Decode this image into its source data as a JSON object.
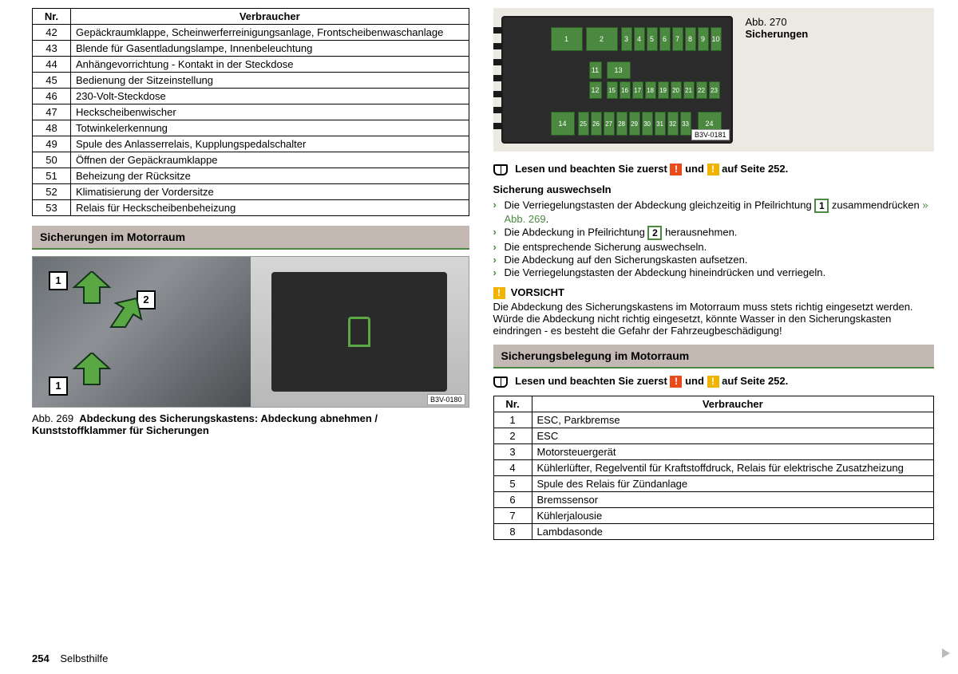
{
  "left_table": {
    "headers": [
      "Nr.",
      "Verbraucher"
    ],
    "rows": [
      [
        "42",
        "Gepäckraumklappe, Scheinwerferreinigungsanlage, Frontscheibenwaschanlage"
      ],
      [
        "43",
        "Blende für Gasentladungslampe, Innenbeleuchtung"
      ],
      [
        "44",
        "Anhängevorrichtung - Kontakt in der Steckdose"
      ],
      [
        "45",
        "Bedienung der Sitzeinstellung"
      ],
      [
        "46",
        "230-Volt-Steckdose"
      ],
      [
        "47",
        "Heckscheibenwischer"
      ],
      [
        "48",
        "Totwinkelerkennung"
      ],
      [
        "49",
        "Spule des Anlasserrelais, Kupplungspedalschalter"
      ],
      [
        "50",
        "Öffnen der Gepäckraumklappe"
      ],
      [
        "51",
        "Beheizung der Rücksitze"
      ],
      [
        "52",
        "Klimatisierung der Vordersitze"
      ],
      [
        "53",
        "Relais für Heckscheibenbeheizung"
      ]
    ]
  },
  "section_left_title": "Sicherungen im Motorraum",
  "fig269": {
    "code": "B3V-0180",
    "caption_prefix": "Abb. 269",
    "caption_text": "Abdeckung des Sicherungskastens: Abdeckung abnehmen / Kunststoffklammer für Sicherungen",
    "marker1": "1",
    "marker2": "2"
  },
  "fig270": {
    "code": "B3V-0181",
    "caption_prefix": "Abb. 270",
    "caption_text": "Sicherungen",
    "fuse_color": "#4b8940"
  },
  "read_first": {
    "text_a": "Lesen und beachten Sie zuerst ",
    "text_mid": " und ",
    "text_b": " auf Seite 252."
  },
  "replace_title": "Sicherung auswechseln",
  "steps": [
    {
      "pre": "Die Verriegelungstasten der Abdeckung gleichzeitig in Pfeilrichtung ",
      "num": "1",
      "post": " zusammendrücken ",
      "ref": "» Abb. 269",
      "suffix": "."
    },
    {
      "pre": "Die Abdeckung in Pfeilrichtung ",
      "num": "2",
      "post": " herausnehmen.",
      "ref": "",
      "suffix": ""
    },
    {
      "pre": "Die entsprechende Sicherung auswechseln.",
      "num": "",
      "post": "",
      "ref": "",
      "suffix": ""
    },
    {
      "pre": "Die Abdeckung auf den Sicherungskasten aufsetzen.",
      "num": "",
      "post": "",
      "ref": "",
      "suffix": ""
    },
    {
      "pre": "Die Verriegelungstasten der Abdeckung hineindrücken und verriegeln.",
      "num": "",
      "post": "",
      "ref": "",
      "suffix": ""
    }
  ],
  "vorsicht": {
    "label": "VORSICHT",
    "text": "Die Abdeckung des Sicherungskastens im Motorraum muss stets richtig eingesetzt werden. Würde die Abdeckung nicht richtig eingesetzt, könnte Wasser in den Sicherungskasten eindringen - es besteht die Gefahr der Fahrzeugbeschädigung!"
  },
  "section_right_title": "Sicherungsbelegung im Motorraum",
  "right_table": {
    "headers": [
      "Nr.",
      "Verbraucher"
    ],
    "rows": [
      [
        "1",
        "ESC, Parkbremse"
      ],
      [
        "2",
        "ESC"
      ],
      [
        "3",
        "Motorsteuergerät"
      ],
      [
        "4",
        "Kühlerlüfter, Regelventil für Kraftstoffdruck, Relais für elektrische Zusatzheizung"
      ],
      [
        "5",
        "Spule des Relais für Zündanlage"
      ],
      [
        "6",
        "Bremssensor"
      ],
      [
        "7",
        "Kühlerjalousie"
      ],
      [
        "8",
        "Lambdasonde"
      ]
    ]
  },
  "footer": {
    "page": "254",
    "section": "Selbsthilfe"
  },
  "colors": {
    "accent_green": "#4b8940",
    "header_bg": "#c4b9b2",
    "badge_red": "#e84c1a",
    "badge_yellow": "#f0b400"
  }
}
